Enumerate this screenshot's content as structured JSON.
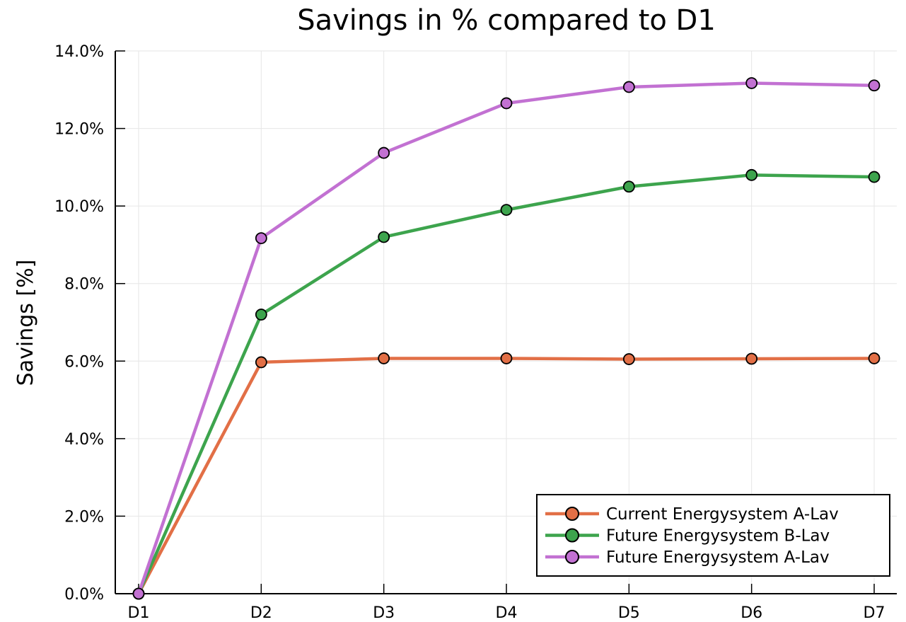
{
  "chart_data": {
    "type": "line",
    "title": "Savings in % compared to D1",
    "xlabel": "",
    "ylabel": "Savings [%]",
    "categories": [
      "D1",
      "D2",
      "D3",
      "D4",
      "D5",
      "D6",
      "D7"
    ],
    "ylim": [
      0,
      14
    ],
    "yticks": [
      0,
      2,
      4,
      6,
      8,
      10,
      12,
      14
    ],
    "ytick_labels": [
      "0.0%",
      "2.0%",
      "4.0%",
      "6.0%",
      "8.0%",
      "10.0%",
      "12.0%",
      "14.0%"
    ],
    "grid": true,
    "legend_position": "bottom-right",
    "markers": "circle",
    "series": [
      {
        "name": "Current Energysystem A-Lav",
        "color": "#e26f46",
        "values": [
          0.0,
          5.97,
          6.07,
          6.07,
          6.05,
          6.06,
          6.07
        ]
      },
      {
        "name": "Future Energysystem B-Lav",
        "color": "#3da44d",
        "values": [
          0.0,
          7.2,
          9.2,
          9.9,
          10.5,
          10.8,
          10.75
        ]
      },
      {
        "name": "Future Energysystem A-Lav",
        "color": "#c271d2",
        "values": [
          0.0,
          9.17,
          11.37,
          12.65,
          13.07,
          13.17,
          13.11
        ]
      }
    ]
  }
}
